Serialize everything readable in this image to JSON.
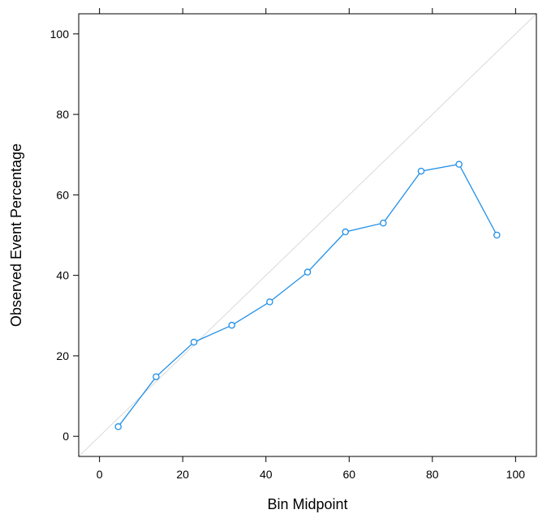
{
  "chart_data": {
    "type": "line",
    "title": "",
    "xlabel": "Bin Midpoint",
    "ylabel": "Observed Event Percentage",
    "xlim": [
      -5,
      105
    ],
    "ylim": [
      -5,
      105
    ],
    "x_ticks": [
      0,
      20,
      40,
      60,
      80,
      100
    ],
    "y_ticks": [
      0,
      20,
      40,
      60,
      80,
      100
    ],
    "x_tick_labels": [
      "0",
      "20",
      "40",
      "60",
      "80",
      "100"
    ],
    "y_tick_labels": [
      "0",
      "20",
      "40",
      "60",
      "80",
      "100"
    ],
    "series": [
      {
        "x": [
          4.5,
          13.6,
          22.7,
          31.8,
          40.9,
          50.0,
          59.1,
          68.2,
          77.3,
          86.4,
          95.5
        ],
        "y": [
          2.4,
          14.8,
          23.4,
          27.6,
          33.4,
          40.8,
          50.8,
          53.0,
          65.9,
          67.6,
          50.0
        ],
        "color": "#1f8fe8",
        "marker": "circle"
      }
    ],
    "reference_line": {
      "from": [
        -5,
        -5
      ],
      "to": [
        105,
        105
      ],
      "color": "#d9d9d9"
    },
    "grid": false,
    "legend": "none"
  }
}
